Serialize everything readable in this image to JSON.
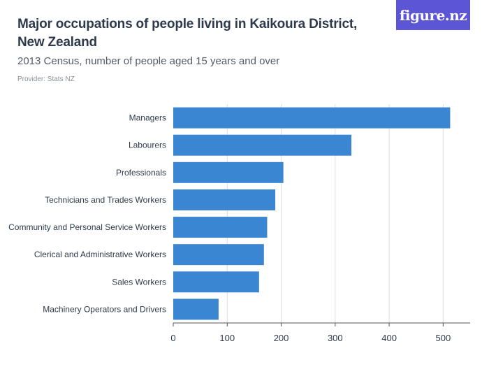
{
  "header": {
    "title": "Major occupations of people living in Kaikoura District, New Zealand",
    "subtitle": "2013 Census, number of people aged 15 years and over",
    "provider": "Provider: Stats NZ",
    "logo": "figure.nz"
  },
  "colors": {
    "bar": "#3b86d3",
    "grid": "#dcdcdc",
    "axis": "#555555",
    "logo_bg": "#5c56d6"
  },
  "chart_data": {
    "type": "bar",
    "orientation": "horizontal",
    "title": "Major occupations of people living in Kaikoura District, New Zealand",
    "subtitle": "2013 Census, number of people aged 15 years and over",
    "xlabel": "",
    "ylabel": "",
    "categories": [
      "Managers",
      "Labourers",
      "Professionals",
      "Technicians and Trades Workers",
      "Community and Personal Service Workers",
      "Clerical and Administrative Workers",
      "Sales Workers",
      "Machinery Operators and Drivers"
    ],
    "values": [
      513,
      330,
      204,
      189,
      174,
      168,
      159,
      84
    ],
    "xlim": [
      0,
      550
    ],
    "xticks": [
      0,
      100,
      200,
      300,
      400,
      500
    ],
    "grid": true
  }
}
